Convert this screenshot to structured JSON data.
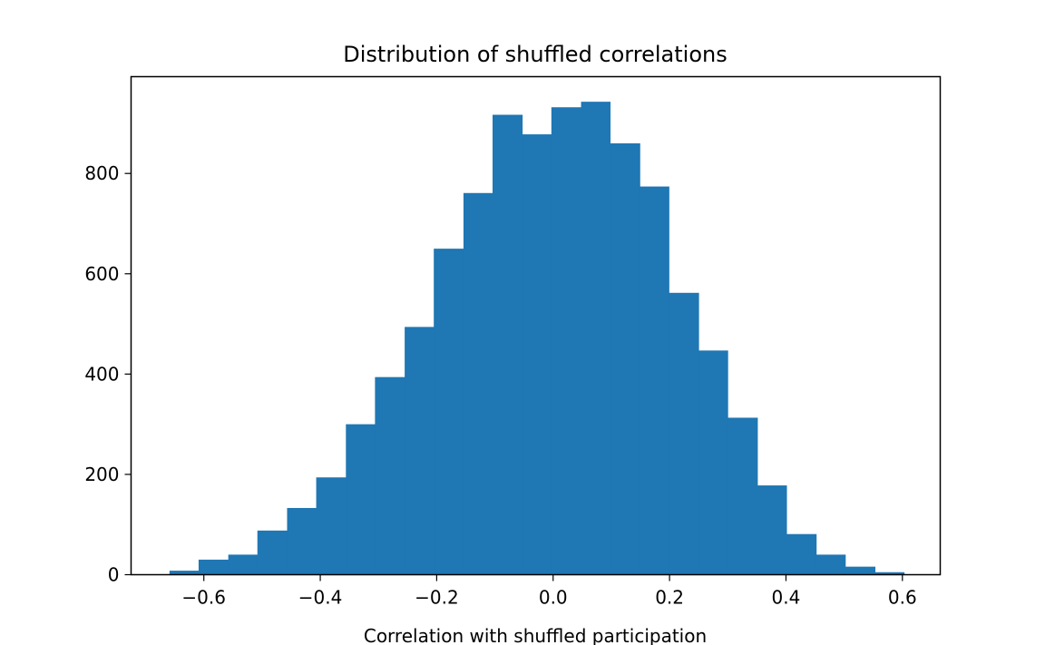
{
  "chart_data": {
    "type": "histogram",
    "title": "Distribution of shuffled correlations",
    "xlabel": "Correlation with shuffled participation",
    "ylabel": "",
    "xlim": [
      -0.725,
      0.665
    ],
    "ylim": [
      0,
      993
    ],
    "grid": false,
    "bar_color": "#1f77b4",
    "x_ticks": [
      -0.6,
      -0.4,
      -0.2,
      0.0,
      0.2,
      0.4,
      0.6
    ],
    "x_tick_labels": [
      "−0.6",
      "−0.4",
      "−0.2",
      "0.0",
      "0.2",
      "0.4",
      "0.6"
    ],
    "y_ticks": [
      0,
      200,
      400,
      600,
      800
    ],
    "y_tick_labels": [
      "0",
      "200",
      "400",
      "600",
      "800"
    ],
    "bins": [
      {
        "x0": -0.659,
        "x1": -0.609,
        "count": 8
      },
      {
        "x0": -0.609,
        "x1": -0.558,
        "count": 30
      },
      {
        "x0": -0.558,
        "x1": -0.508,
        "count": 40
      },
      {
        "x0": -0.508,
        "x1": -0.457,
        "count": 88
      },
      {
        "x0": -0.457,
        "x1": -0.407,
        "count": 133
      },
      {
        "x0": -0.407,
        "x1": -0.356,
        "count": 194
      },
      {
        "x0": -0.356,
        "x1": -0.306,
        "count": 300
      },
      {
        "x0": -0.306,
        "x1": -0.255,
        "count": 394
      },
      {
        "x0": -0.255,
        "x1": -0.205,
        "count": 494
      },
      {
        "x0": -0.205,
        "x1": -0.154,
        "count": 650
      },
      {
        "x0": -0.154,
        "x1": -0.104,
        "count": 761
      },
      {
        "x0": -0.104,
        "x1": -0.053,
        "count": 917
      },
      {
        "x0": -0.053,
        "x1": -0.003,
        "count": 878
      },
      {
        "x0": -0.003,
        "x1": 0.048,
        "count": 932
      },
      {
        "x0": 0.048,
        "x1": 0.098,
        "count": 943
      },
      {
        "x0": 0.098,
        "x1": 0.149,
        "count": 860
      },
      {
        "x0": 0.149,
        "x1": 0.199,
        "count": 774
      },
      {
        "x0": 0.199,
        "x1": 0.25,
        "count": 562
      },
      {
        "x0": 0.25,
        "x1": 0.3,
        "count": 447
      },
      {
        "x0": 0.3,
        "x1": 0.351,
        "count": 313
      },
      {
        "x0": 0.351,
        "x1": 0.401,
        "count": 178
      },
      {
        "x0": 0.401,
        "x1": 0.452,
        "count": 81
      },
      {
        "x0": 0.452,
        "x1": 0.502,
        "count": 40
      },
      {
        "x0": 0.502,
        "x1": 0.553,
        "count": 16
      },
      {
        "x0": 0.553,
        "x1": 0.603,
        "count": 5
      }
    ]
  }
}
